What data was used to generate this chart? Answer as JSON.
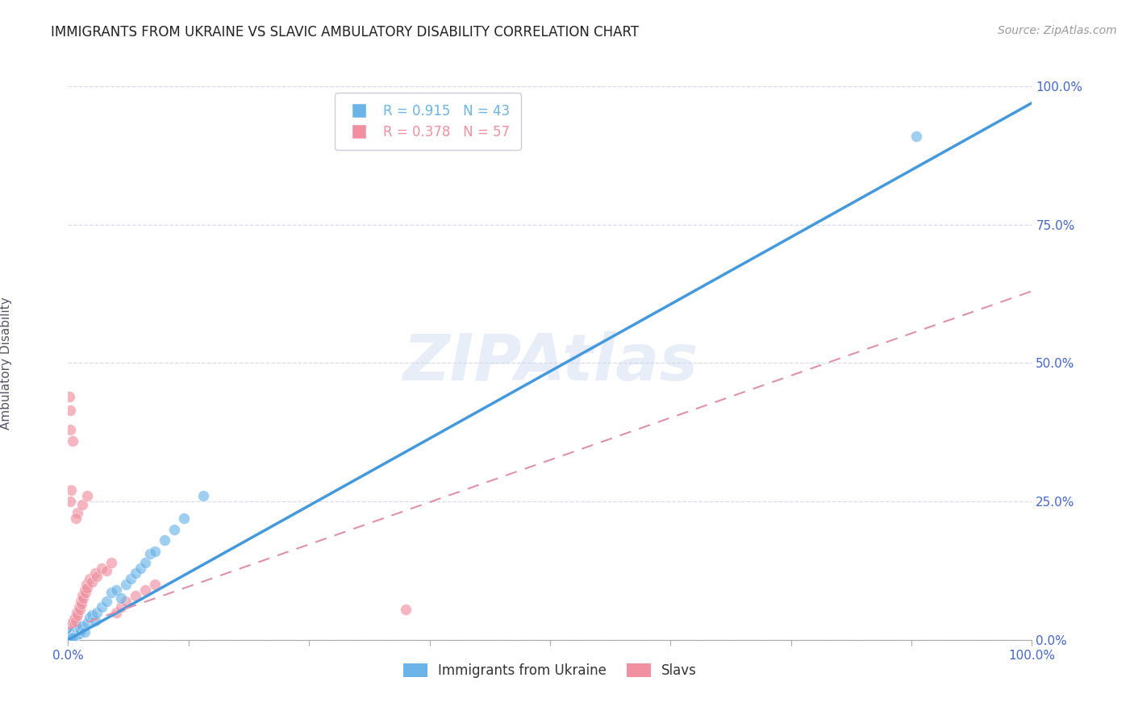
{
  "title": "IMMIGRANTS FROM UKRAINE VS SLAVIC AMBULATORY DISABILITY CORRELATION CHART",
  "source": "Source: ZipAtlas.com",
  "ylabel": "Ambulatory Disability",
  "x_left_label": "0.0%",
  "x_right_label": "100.0%",
  "ytick_labels": [
    "0.0%",
    "25.0%",
    "50.0%",
    "75.0%",
    "100.0%"
  ],
  "ytick_values": [
    0,
    25,
    50,
    75,
    100
  ],
  "x_tick_positions": [
    0,
    12.5,
    25,
    37.5,
    50,
    62.5,
    75,
    87.5,
    100
  ],
  "xlim": [
    0,
    100
  ],
  "ylim": [
    0,
    100
  ],
  "watermark_text": "ZIPAtlas",
  "legend_r_color_ukraine": "#6ab4e8",
  "legend_r_color_slavs": "#f090a0",
  "legend_r1": "R = 0.915   N = 43",
  "legend_r2": "R = 0.378   N = 57",
  "ukraine_color": "#6ab4e8",
  "slavs_color": "#f090a0",
  "ukraine_scatter": [
    [
      0.15,
      0.8
    ],
    [
      0.2,
      1.0
    ],
    [
      0.25,
      0.9
    ],
    [
      0.3,
      1.2
    ],
    [
      0.35,
      0.7
    ],
    [
      0.4,
      1.5
    ],
    [
      0.45,
      1.1
    ],
    [
      0.5,
      1.3
    ],
    [
      0.6,
      0.6
    ],
    [
      0.65,
      0.5
    ],
    [
      0.7,
      0.8
    ],
    [
      0.8,
      0.9
    ],
    [
      0.9,
      1.0
    ],
    [
      1.0,
      1.5
    ],
    [
      1.1,
      1.2
    ],
    [
      1.2,
      2.0
    ],
    [
      1.3,
      1.8
    ],
    [
      1.5,
      2.5
    ],
    [
      1.7,
      1.5
    ],
    [
      2.0,
      3.0
    ],
    [
      2.2,
      4.0
    ],
    [
      2.5,
      4.5
    ],
    [
      2.8,
      3.5
    ],
    [
      3.0,
      5.0
    ],
    [
      3.5,
      6.0
    ],
    [
      4.0,
      7.0
    ],
    [
      4.5,
      8.5
    ],
    [
      5.0,
      9.0
    ],
    [
      5.5,
      7.5
    ],
    [
      6.0,
      10.0
    ],
    [
      6.5,
      11.0
    ],
    [
      7.0,
      12.0
    ],
    [
      7.5,
      13.0
    ],
    [
      8.0,
      14.0
    ],
    [
      8.5,
      15.5
    ],
    [
      9.0,
      16.0
    ],
    [
      10.0,
      18.0
    ],
    [
      11.0,
      20.0
    ],
    [
      12.0,
      22.0
    ],
    [
      14.0,
      26.0
    ],
    [
      0.3,
      0.3
    ],
    [
      0.5,
      0.4
    ],
    [
      88.0,
      91.0
    ]
  ],
  "slavs_scatter": [
    [
      0.1,
      0.8
    ],
    [
      0.15,
      1.0
    ],
    [
      0.2,
      1.5
    ],
    [
      0.25,
      2.0
    ],
    [
      0.3,
      1.2
    ],
    [
      0.35,
      2.5
    ],
    [
      0.4,
      1.8
    ],
    [
      0.45,
      3.0
    ],
    [
      0.5,
      2.2
    ],
    [
      0.55,
      3.5
    ],
    [
      0.6,
      2.8
    ],
    [
      0.7,
      4.0
    ],
    [
      0.8,
      3.5
    ],
    [
      0.9,
      5.0
    ],
    [
      1.0,
      4.5
    ],
    [
      1.1,
      6.0
    ],
    [
      1.2,
      5.5
    ],
    [
      1.3,
      7.0
    ],
    [
      1.4,
      6.5
    ],
    [
      1.5,
      8.0
    ],
    [
      1.6,
      7.5
    ],
    [
      1.7,
      9.0
    ],
    [
      1.8,
      8.5
    ],
    [
      1.9,
      10.0
    ],
    [
      2.0,
      9.5
    ],
    [
      2.2,
      11.0
    ],
    [
      2.5,
      10.5
    ],
    [
      2.8,
      12.0
    ],
    [
      3.0,
      11.5
    ],
    [
      3.5,
      13.0
    ],
    [
      4.0,
      12.5
    ],
    [
      4.5,
      14.0
    ],
    [
      5.0,
      5.0
    ],
    [
      5.5,
      6.0
    ],
    [
      6.0,
      7.0
    ],
    [
      7.0,
      8.0
    ],
    [
      8.0,
      9.0
    ],
    [
      9.0,
      10.0
    ],
    [
      0.2,
      41.5
    ],
    [
      0.15,
      44.0
    ],
    [
      0.25,
      38.0
    ],
    [
      0.2,
      25.0
    ],
    [
      0.3,
      27.0
    ],
    [
      0.5,
      36.0
    ],
    [
      1.0,
      23.0
    ],
    [
      1.5,
      24.5
    ],
    [
      2.0,
      26.0
    ],
    [
      0.8,
      22.0
    ],
    [
      35.0,
      5.5
    ],
    [
      0.12,
      0.5
    ],
    [
      0.18,
      0.7
    ],
    [
      0.22,
      0.9
    ],
    [
      0.28,
      1.1
    ],
    [
      0.32,
      0.6
    ],
    [
      0.38,
      0.8
    ],
    [
      0.42,
      1.0
    ],
    [
      0.48,
      0.5
    ]
  ],
  "ukraine_line_x": [
    0,
    100
  ],
  "ukraine_line_y": [
    0,
    97
  ],
  "ukraine_line_color": "#4499dd",
  "ukraine_line_lw": 2.5,
  "slavs_line_x": [
    0,
    100
  ],
  "slavs_line_y": [
    2,
    63
  ],
  "slavs_line_color": "#e090a8",
  "slavs_line_lw": 1.5,
  "title_fontsize": 12,
  "source_fontsize": 10,
  "ylabel_fontsize": 11,
  "tick_fontsize": 11,
  "legend_fontsize": 12,
  "bg_color": "#ffffff",
  "grid_color": "#d8dce8",
  "title_color": "#222222",
  "tick_color": "#4466cc",
  "source_color": "#999999",
  "ylabel_color": "#555566"
}
